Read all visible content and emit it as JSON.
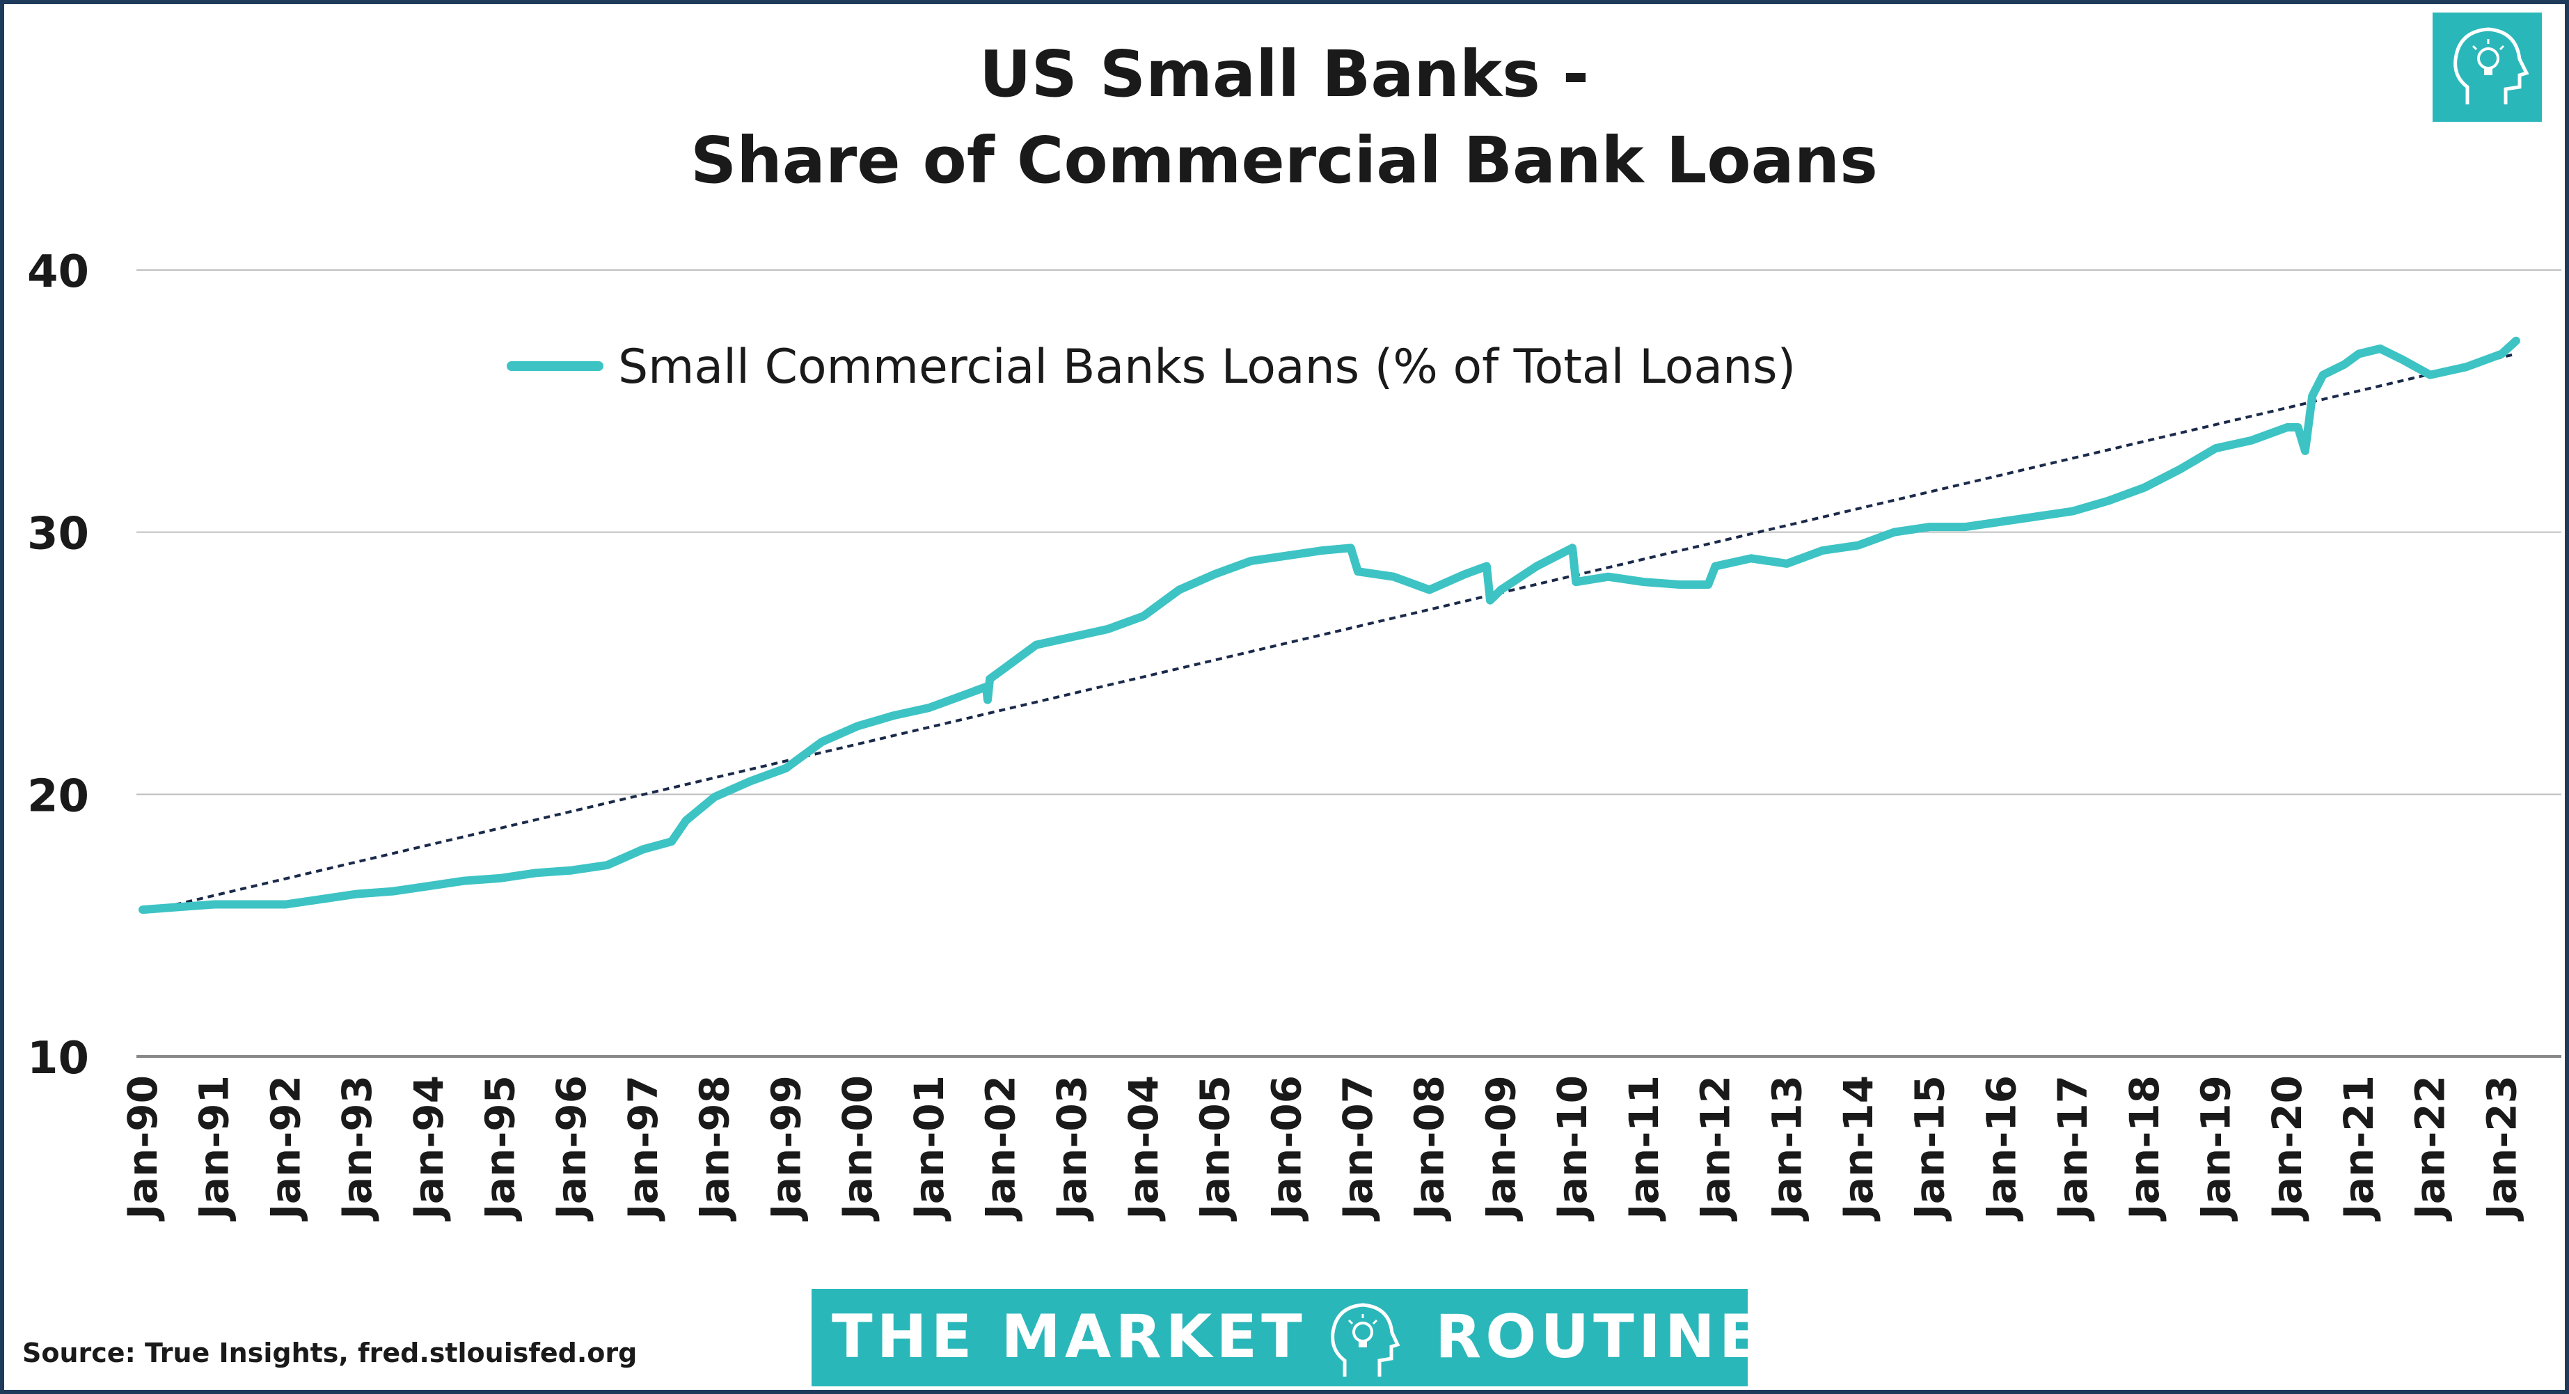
{
  "colors": {
    "series": "#3dc3c4",
    "trend": "#1b2a4a",
    "grid": "#bfbfbf",
    "frame": "#1f3b5c",
    "brand_bg": "#2ab7ba"
  },
  "brand": {
    "left": "THE MARKET",
    "right": "ROUTINE",
    "logo_icon": "head-lightbulb-icon"
  },
  "source": "Source: True Insights, fred.stlouisfed.org",
  "chart_data": {
    "type": "line",
    "title": "US Small Banks -",
    "subtitle": "Share of Commercial Bank Loans",
    "xlabel": "",
    "ylabel": "",
    "ylim": [
      10,
      40
    ],
    "yticks": [
      10,
      20,
      30,
      40
    ],
    "xlim": [
      1990.0,
      2023.25
    ],
    "grid": true,
    "legend_position": "top-left",
    "x_tick_labels": [
      "Jan-90",
      "Jan-91",
      "Jan-92",
      "Jan-93",
      "Jan-94",
      "Jan-95",
      "Jan-96",
      "Jan-97",
      "Jan-98",
      "Jan-99",
      "Jan-00",
      "Jan-01",
      "Jan-02",
      "Jan-03",
      "Jan-04",
      "Jan-05",
      "Jan-06",
      "Jan-07",
      "Jan-08",
      "Jan-09",
      "Jan-10",
      "Jan-11",
      "Jan-12",
      "Jan-13",
      "Jan-14",
      "Jan-15",
      "Jan-16",
      "Jan-17",
      "Jan-18",
      "Jan-19",
      "Jan-20",
      "Jan-21",
      "Jan-22",
      "Jan-23"
    ],
    "series": [
      {
        "name": "Small Commercial Banks Loans (% of Total Loans)",
        "x": [
          1990.0,
          1990.5,
          1991.0,
          1991.5,
          1992.0,
          1992.5,
          1993.0,
          1993.5,
          1994.0,
          1994.5,
          1995.0,
          1995.5,
          1996.0,
          1996.5,
          1997.0,
          1997.4,
          1997.6,
          1998.0,
          1998.5,
          1999.0,
          1999.5,
          2000.0,
          2000.5,
          2001.0,
          2001.5,
          2001.8,
          2001.82,
          2001.85,
          2002.0,
          2002.5,
          2003.0,
          2003.5,
          2004.0,
          2004.5,
          2005.0,
          2005.5,
          2006.0,
          2006.5,
          2006.9,
          2007.0,
          2007.5,
          2008.0,
          2008.5,
          2008.8,
          2008.85,
          2009.0,
          2009.5,
          2010.0,
          2010.05,
          2010.5,
          2011.0,
          2011.5,
          2011.9,
          2012.0,
          2012.5,
          2013.0,
          2013.5,
          2014.0,
          2014.5,
          2015.0,
          2015.5,
          2016.0,
          2016.5,
          2017.0,
          2017.5,
          2018.0,
          2018.5,
          2019.0,
          2019.5,
          2020.0,
          2020.15,
          2020.25,
          2020.35,
          2020.5,
          2020.8,
          2021.0,
          2021.3,
          2021.6,
          2022.0,
          2022.5,
          2023.0,
          2023.2
        ],
        "values": [
          15.6,
          15.7,
          15.8,
          15.8,
          15.8,
          16.0,
          16.2,
          16.3,
          16.5,
          16.7,
          16.8,
          17.0,
          17.1,
          17.3,
          17.9,
          18.2,
          19.0,
          19.9,
          20.5,
          21.0,
          22.0,
          22.6,
          23.0,
          23.3,
          23.8,
          24.1,
          23.6,
          24.4,
          24.7,
          25.7,
          26.0,
          26.3,
          26.8,
          27.8,
          28.4,
          28.9,
          29.1,
          29.3,
          29.4,
          28.5,
          28.3,
          27.8,
          28.4,
          28.7,
          27.4,
          27.8,
          28.7,
          29.4,
          28.1,
          28.3,
          28.1,
          28.0,
          28.0,
          28.7,
          29.0,
          28.8,
          29.3,
          29.5,
          30.0,
          30.2,
          30.2,
          30.4,
          30.6,
          30.8,
          31.2,
          31.7,
          32.4,
          33.2,
          33.5,
          34.0,
          34.0,
          33.1,
          35.2,
          36.0,
          36.4,
          36.8,
          37.0,
          36.6,
          36.0,
          36.3,
          36.8,
          37.3
        ]
      }
    ],
    "trendline": {
      "x": [
        1990.0,
        2023.2
      ],
      "values": [
        15.5,
        36.8
      ]
    }
  }
}
